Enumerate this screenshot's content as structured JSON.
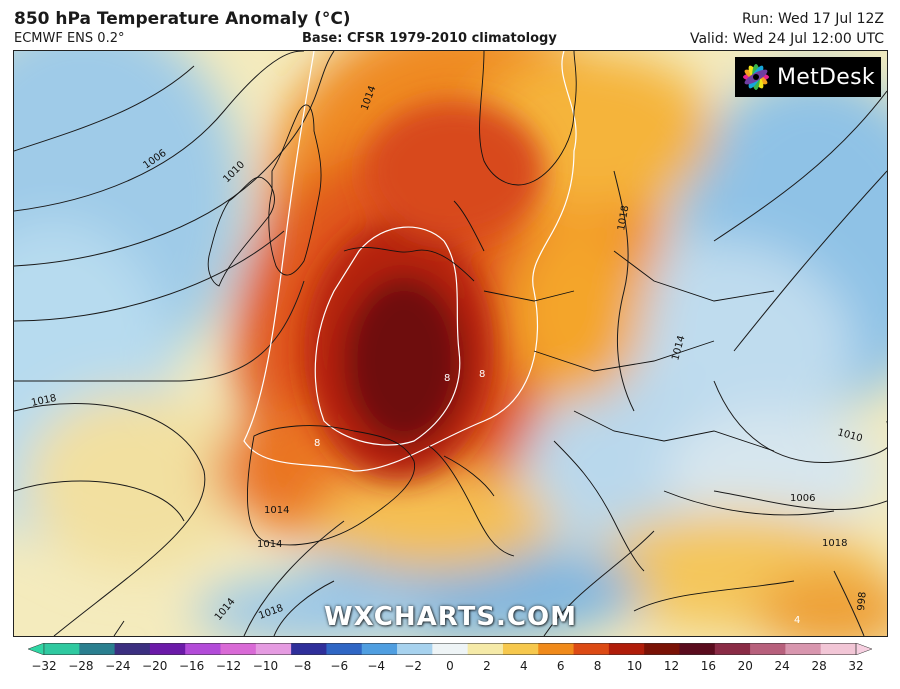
{
  "header": {
    "title": "850 hPa Temperature Anomaly (°C)",
    "model": "ECMWF ENS 0.2°",
    "base": "Base: CFSR 1979-2010 climatology",
    "run": "Run: Wed 17 Jul 12Z",
    "valid": "Valid: Wed 24 Jul 12:00 UTC"
  },
  "logo": {
    "text": "MetDesk"
  },
  "watermark": "WXCHARTS.COM",
  "colorbar": {
    "ticks": [
      "-32",
      "-28",
      "-24",
      "-20",
      "-16",
      "-12",
      "-10",
      "-8",
      "-6",
      "-4",
      "-2",
      "0",
      "2",
      "4",
      "6",
      "8",
      "10",
      "12",
      "16",
      "20",
      "24",
      "28",
      "32"
    ],
    "colors": [
      "#2fc9a0",
      "#2a7f8f",
      "#3b2f80",
      "#6b1aa8",
      "#b24bd8",
      "#d96ad6",
      "#e59be1",
      "#2f2f9a",
      "#2f66c4",
      "#4f9ee0",
      "#a7d2ee",
      "#eef4f6",
      "#f5eaa8",
      "#f6c84d",
      "#f08a1a",
      "#dc4a14",
      "#b01d0a",
      "#7a1206",
      "#5a0c1e",
      "#8a2b46",
      "#b7607c",
      "#d896ae",
      "#f2c6d6"
    ],
    "arrow_left": "#2fd6a4",
    "arrow_right": "#f6cfe0"
  },
  "contours": [
    {
      "label": "1006"
    },
    {
      "label": "1010"
    },
    {
      "label": "1014"
    },
    {
      "label": "1014"
    },
    {
      "label": "1018"
    },
    {
      "label": "1018"
    },
    {
      "label": "1018"
    },
    {
      "label": "1014"
    },
    {
      "label": "1014"
    },
    {
      "label": "1010"
    },
    {
      "label": "1006"
    },
    {
      "label": "1018"
    },
    {
      "label": "998"
    },
    {
      "label": "1014"
    }
  ],
  "anomaly_labels": [
    "8",
    "8",
    "8",
    "4"
  ]
}
